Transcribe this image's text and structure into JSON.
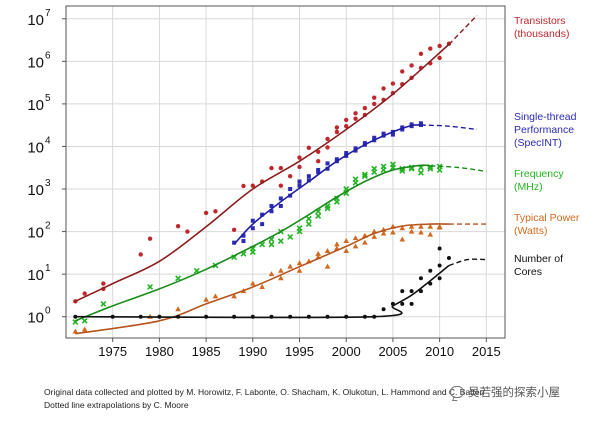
{
  "chart_data": {
    "type": "scatter",
    "y_scale": "log",
    "xlim": [
      1970,
      2017
    ],
    "ylim_log10": [
      -0.5,
      7.3
    ],
    "x_ticks": [
      1975,
      1980,
      1985,
      1990,
      1995,
      2000,
      2005,
      2010,
      2015
    ],
    "y_ticks": [
      {
        "exp": 0,
        "label_base": "10",
        "label_exp": "0"
      },
      {
        "exp": 1,
        "label_base": "10",
        "label_exp": "1"
      },
      {
        "exp": 2,
        "label_base": "10",
        "label_exp": "2"
      },
      {
        "exp": 3,
        "label_base": "10",
        "label_exp": "3"
      },
      {
        "exp": 4,
        "label_base": "10",
        "label_exp": "4"
      },
      {
        "exp": 5,
        "label_base": "10",
        "label_exp": "5"
      },
      {
        "exp": 6,
        "label_base": "10",
        "label_exp": "6"
      },
      {
        "exp": 7,
        "label_base": "10",
        "label_exp": "7"
      }
    ],
    "grid": true,
    "legend_placement": "right",
    "series": [
      {
        "key": "transistors",
        "name_lines": [
          "Transistors",
          "(thousands)"
        ],
        "color": "#c0272d",
        "line_color": "#8b1c1c",
        "marker": "circle",
        "trend": [
          [
            1971,
            2.3
          ],
          [
            1975,
            6
          ],
          [
            1980,
            20
          ],
          [
            1985,
            130
          ],
          [
            1990,
            1000
          ],
          [
            1995,
            4500
          ],
          [
            2000,
            25000
          ],
          [
            2005,
            170000
          ],
          [
            2011,
            2500000
          ]
        ],
        "extrapolation": [
          [
            2011,
            2500000
          ],
          [
            2014,
            12000000
          ]
        ],
        "points": [
          [
            1971,
            2.3
          ],
          [
            1972,
            3.5
          ],
          [
            1974,
            4.5
          ],
          [
            1974,
            6
          ],
          [
            1978,
            29
          ],
          [
            1979,
            68
          ],
          [
            1982,
            134
          ],
          [
            1983,
            100
          ],
          [
            1985,
            275
          ],
          [
            1986,
            300
          ],
          [
            1988,
            110
          ],
          [
            1989,
            1180
          ],
          [
            1990,
            1200
          ],
          [
            1991,
            1500
          ],
          [
            1992,
            3100
          ],
          [
            1993,
            3100
          ],
          [
            1993,
            1200
          ],
          [
            1994,
            2000
          ],
          [
            1995,
            5500
          ],
          [
            1995,
            3300
          ],
          [
            1996,
            9300
          ],
          [
            1997,
            7500
          ],
          [
            1997,
            4500
          ],
          [
            1998,
            15000
          ],
          [
            1998,
            9500
          ],
          [
            1999,
            22000
          ],
          [
            1999,
            28000
          ],
          [
            2000,
            42000
          ],
          [
            2000,
            30000
          ],
          [
            2001,
            45000
          ],
          [
            2001,
            60000
          ],
          [
            2002,
            80000
          ],
          [
            2002,
            55000
          ],
          [
            2003,
            140000
          ],
          [
            2003,
            100000
          ],
          [
            2004,
            125000
          ],
          [
            2004,
            230000
          ],
          [
            2005,
            180000
          ],
          [
            2005,
            300000
          ],
          [
            2006,
            290000
          ],
          [
            2006,
            580000
          ],
          [
            2007,
            410000
          ],
          [
            2007,
            800000
          ],
          [
            2008,
            700000
          ],
          [
            2008,
            1500000
          ],
          [
            2009,
            900000
          ],
          [
            2009,
            2000000
          ],
          [
            2010,
            1200000
          ],
          [
            2010,
            2300000
          ],
          [
            2011,
            2600000
          ]
        ]
      },
      {
        "key": "single_thread",
        "name_lines": [
          "Single-thread",
          "Performance",
          "(SpecINT)"
        ],
        "color": "#2a2ab4",
        "line_color": "#2020a0",
        "marker": "square",
        "trend": [
          [
            1988,
            50
          ],
          [
            1990,
            150
          ],
          [
            1993,
            500
          ],
          [
            1996,
            1500
          ],
          [
            1999,
            4500
          ],
          [
            2002,
            11000
          ],
          [
            2005,
            22000
          ],
          [
            2007,
            31000
          ],
          [
            2008,
            32000
          ]
        ],
        "extrapolation": [
          [
            2008,
            32000
          ],
          [
            2011,
            30000
          ],
          [
            2014,
            25000
          ]
        ],
        "points": [
          [
            1988,
            55
          ],
          [
            1989,
            80
          ],
          [
            1989,
            60
          ],
          [
            1990,
            120
          ],
          [
            1990,
            180
          ],
          [
            1991,
            250
          ],
          [
            1991,
            150
          ],
          [
            1992,
            400
          ],
          [
            1992,
            300
          ],
          [
            1993,
            600
          ],
          [
            1993,
            400
          ],
          [
            1994,
            700
          ],
          [
            1994,
            1000
          ],
          [
            1995,
            1500
          ],
          [
            1995,
            1200
          ],
          [
            1996,
            2000
          ],
          [
            1996,
            1600
          ],
          [
            1997,
            2800
          ],
          [
            1997,
            2500
          ],
          [
            1998,
            4000
          ],
          [
            1998,
            3000
          ],
          [
            1999,
            5000
          ],
          [
            1999,
            4500
          ],
          [
            2000,
            7000
          ],
          [
            2000,
            6000
          ],
          [
            2001,
            8000
          ],
          [
            2001,
            9000
          ],
          [
            2002,
            11000
          ],
          [
            2002,
            12000
          ],
          [
            2003,
            14000
          ],
          [
            2003,
            16000
          ],
          [
            2004,
            18000
          ],
          [
            2004,
            20000
          ],
          [
            2005,
            22000
          ],
          [
            2005,
            19000
          ],
          [
            2006,
            25000
          ],
          [
            2006,
            28000
          ],
          [
            2007,
            30000
          ],
          [
            2007,
            33000
          ],
          [
            2008,
            35000
          ],
          [
            2008,
            32000
          ]
        ]
      },
      {
        "key": "frequency",
        "name_lines": [
          "Frequency",
          "(MHz)"
        ],
        "color": "#22b422",
        "line_color": "#1a8c1a",
        "marker": "x",
        "trend": [
          [
            1971,
            0.8
          ],
          [
            1975,
            1.8
          ],
          [
            1980,
            4.5
          ],
          [
            1985,
            13
          ],
          [
            1990,
            45
          ],
          [
            1993,
            100
          ],
          [
            1996,
            250
          ],
          [
            1999,
            650
          ],
          [
            2002,
            1500
          ],
          [
            2005,
            2800
          ],
          [
            2008,
            3600
          ],
          [
            2009,
            3500
          ]
        ],
        "extrapolation": [
          [
            2009,
            3500
          ],
          [
            2012,
            3200
          ],
          [
            2015,
            2600
          ]
        ],
        "points": [
          [
            1971,
            0.75
          ],
          [
            1972,
            0.8
          ],
          [
            1974,
            2
          ],
          [
            1979,
            5
          ],
          [
            1982,
            8
          ],
          [
            1984,
            12
          ],
          [
            1986,
            16
          ],
          [
            1988,
            25
          ],
          [
            1989,
            30
          ],
          [
            1990,
            33
          ],
          [
            1990,
            40
          ],
          [
            1991,
            50
          ],
          [
            1992,
            66
          ],
          [
            1992,
            50
          ],
          [
            1993,
            100
          ],
          [
            1993,
            60
          ],
          [
            1994,
            75
          ],
          [
            1995,
            120
          ],
          [
            1995,
            100
          ],
          [
            1996,
            200
          ],
          [
            1996,
            150
          ],
          [
            1997,
            300
          ],
          [
            1997,
            233
          ],
          [
            1998,
            400
          ],
          [
            1998,
            350
          ],
          [
            1999,
            500
          ],
          [
            1999,
            600
          ],
          [
            2000,
            800
          ],
          [
            2000,
            1000
          ],
          [
            2001,
            1400
          ],
          [
            2001,
            1700
          ],
          [
            2002,
            2200
          ],
          [
            2002,
            2000
          ],
          [
            2003,
            3000
          ],
          [
            2003,
            2500
          ],
          [
            2004,
            3400
          ],
          [
            2004,
            2800
          ],
          [
            2005,
            3800
          ],
          [
            2005,
            3200
          ],
          [
            2006,
            3000
          ],
          [
            2006,
            2660
          ],
          [
            2007,
            3200
          ],
          [
            2007,
            3000
          ],
          [
            2008,
            3200
          ],
          [
            2008,
            2400
          ],
          [
            2009,
            3300
          ],
          [
            2009,
            3000
          ],
          [
            2010,
            3400
          ],
          [
            2010,
            2800
          ]
        ]
      },
      {
        "key": "typical_power",
        "name_lines": [
          "Typical Power",
          "(Watts)"
        ],
        "color": "#d2691e",
        "line_color": "#b5541c",
        "marker": "triangle",
        "trend": [
          [
            1971,
            0.4
          ],
          [
            1980,
            0.8
          ],
          [
            1985,
            2
          ],
          [
            1990,
            5
          ],
          [
            1995,
            15
          ],
          [
            2000,
            45
          ],
          [
            2003,
            90
          ],
          [
            2006,
            135
          ],
          [
            2009,
            150
          ],
          [
            2011,
            150
          ]
        ],
        "extrapolation": [
          [
            2011,
            150
          ],
          [
            2015,
            150
          ]
        ],
        "points": [
          [
            1971,
            0.45
          ],
          [
            1972,
            0.5
          ],
          [
            1979,
            1
          ],
          [
            1982,
            1.5
          ],
          [
            1985,
            2.5
          ],
          [
            1986,
            3
          ],
          [
            1988,
            3
          ],
          [
            1989,
            4
          ],
          [
            1990,
            6
          ],
          [
            1991,
            5
          ],
          [
            1992,
            10
          ],
          [
            1993,
            12
          ],
          [
            1993,
            8
          ],
          [
            1994,
            15
          ],
          [
            1995,
            18
          ],
          [
            1995,
            12
          ],
          [
            1996,
            20
          ],
          [
            1997,
            30
          ],
          [
            1997,
            25
          ],
          [
            1998,
            35
          ],
          [
            1998,
            15
          ],
          [
            1999,
            40
          ],
          [
            1999,
            50
          ],
          [
            2000,
            60
          ],
          [
            2000,
            35
          ],
          [
            2001,
            70
          ],
          [
            2001,
            45
          ],
          [
            2002,
            80
          ],
          [
            2002,
            55
          ],
          [
            2003,
            100
          ],
          [
            2003,
            75
          ],
          [
            2004,
            110
          ],
          [
            2004,
            90
          ],
          [
            2005,
            130
          ],
          [
            2005,
            95
          ],
          [
            2006,
            120
          ],
          [
            2006,
            65
          ],
          [
            2007,
            130
          ],
          [
            2007,
            100
          ],
          [
            2008,
            130
          ],
          [
            2008,
            95
          ],
          [
            2009,
            130
          ],
          [
            2009,
            85
          ],
          [
            2010,
            125
          ],
          [
            2010,
            130
          ]
        ]
      },
      {
        "key": "cores",
        "name_lines": [
          "Number of",
          "Cores"
        ],
        "color": "#111111",
        "line_color": "#111111",
        "marker": "dot",
        "trend": [
          [
            1971,
            1
          ],
          [
            2003,
            1
          ],
          [
            2005,
            1.8
          ],
          [
            2007,
            3.2
          ],
          [
            2009,
            7
          ],
          [
            2011,
            16
          ]
        ],
        "extrapolation": [
          [
            2011,
            16
          ],
          [
            2013,
            22
          ],
          [
            2015,
            22
          ]
        ],
        "points": [
          [
            1971,
            1
          ],
          [
            1975,
            1
          ],
          [
            1978,
            1
          ],
          [
            1980,
            1
          ],
          [
            1982,
            1
          ],
          [
            1985,
            1
          ],
          [
            1988,
            1
          ],
          [
            1990,
            1
          ],
          [
            1992,
            1
          ],
          [
            1994,
            1
          ],
          [
            1996,
            1
          ],
          [
            1998,
            1
          ],
          [
            2000,
            1
          ],
          [
            2002,
            1
          ],
          [
            2003,
            1
          ],
          [
            2004,
            1.5
          ],
          [
            2005,
            2
          ],
          [
            2006,
            2
          ],
          [
            2006,
            4
          ],
          [
            2007,
            2
          ],
          [
            2007,
            4
          ],
          [
            2008,
            4
          ],
          [
            2008,
            8
          ],
          [
            2009,
            6
          ],
          [
            2009,
            12
          ],
          [
            2010,
            8
          ],
          [
            2010,
            16
          ],
          [
            2010,
            40
          ],
          [
            2011,
            24
          ]
        ]
      }
    ]
  },
  "captions": {
    "line1": "Original data collected and plotted by M. Horowitz, F. Labonte, O. Shacham, K. Olukotun, L. Hammond and C. Batten",
    "line2": "Dotted line extrapolations by C. Moore"
  },
  "watermark": "吴若强的探索小屋"
}
